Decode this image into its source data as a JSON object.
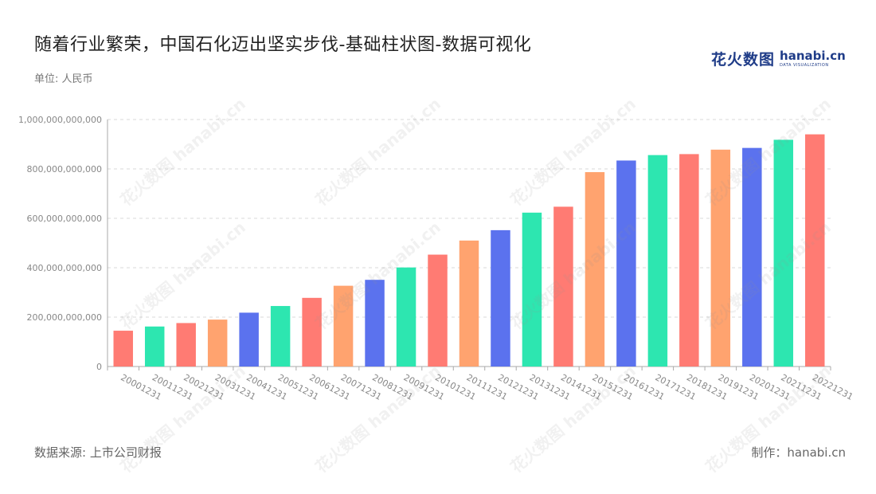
{
  "header": {
    "title": "随着行业繁荣，中国石化迈出坚实步伐-基础柱状图-数据可视化",
    "unit": "单位: 人民币"
  },
  "logo": {
    "cn": "花火数图",
    "en": "hanabi.cn",
    "sub": "DATA VISUALIZATION"
  },
  "footer": {
    "source": "数据来源: 上市公司财报",
    "maker": "制作：hanabi.cn"
  },
  "watermark": {
    "text": "花火数图 hanabi.cn"
  },
  "palette": [
    "#5b72ee",
    "#2de6b0",
    "#ff7b73",
    "#ffa36f"
  ],
  "chart_data": {
    "type": "bar",
    "categories": [
      "20001231",
      "20011231",
      "20021231",
      "20031231",
      "20041231",
      "20051231",
      "20061231",
      "20071231",
      "20081231",
      "20091231",
      "20101231",
      "20111231",
      "20121231",
      "20131231",
      "20141231",
      "20151231",
      "20161231",
      "20171231",
      "20181231",
      "20191231",
      "20201231",
      "20211231",
      "20221231"
    ],
    "values": [
      145000000000,
      162000000000,
      176000000000,
      190000000000,
      218000000000,
      245000000000,
      278000000000,
      327000000000,
      351000000000,
      401000000000,
      453000000000,
      510000000000,
      552000000000,
      623000000000,
      647000000000,
      787000000000,
      834000000000,
      856000000000,
      860000000000,
      878000000000,
      885000000000,
      918000000000,
      940000000000
    ],
    "colors": [
      "#ff7b73",
      "#2de6b0",
      "#ff7b73",
      "#ffa36f",
      "#5b72ee",
      "#2de6b0",
      "#ff7b73",
      "#ffa36f",
      "#5b72ee",
      "#2de6b0",
      "#ff7b73",
      "#ffa36f",
      "#5b72ee",
      "#2de6b0",
      "#ff7b73",
      "#ffa36f",
      "#5b72ee",
      "#2de6b0",
      "#ff7b73",
      "#ffa36f",
      "#5b72ee",
      "#2de6b0",
      "#ff7b73"
    ],
    "yticks": [
      0,
      200000000000,
      400000000000,
      600000000000,
      800000000000,
      1000000000000
    ],
    "ytick_labels": [
      "0",
      "200,000,000,000",
      "400,000,000,000",
      "600,000,000,000",
      "800,000,000,000",
      "1,000,000,000,000"
    ],
    "ylim": [
      0,
      1000000000000
    ],
    "title": "随着行业繁荣，中国石化迈出坚实步伐-基础柱状图-数据可视化",
    "xlabel": "",
    "ylabel": "单位: 人民币",
    "grid": true,
    "legend": "none"
  }
}
